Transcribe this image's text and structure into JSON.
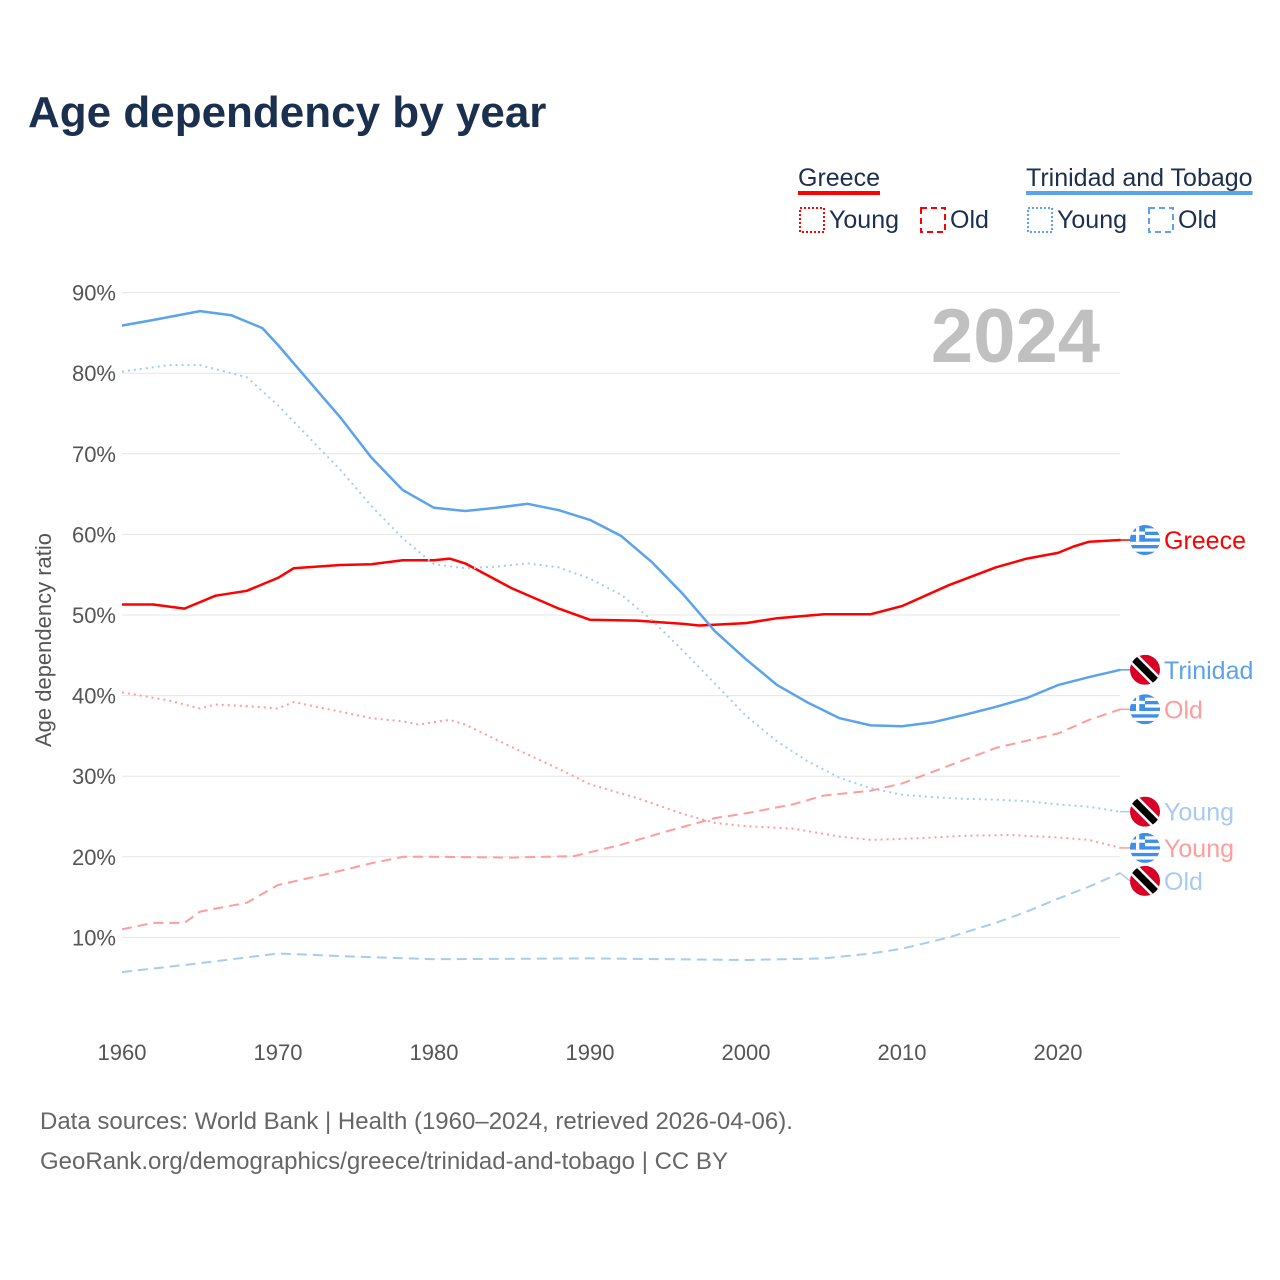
{
  "title": "Age dependency by year",
  "year_watermark": "2024",
  "legend": {
    "groups": [
      {
        "name": "Greece",
        "color": "#ff0000",
        "items": [
          "Young",
          "Old"
        ]
      },
      {
        "name": "Trinidad and Tobago",
        "color": "#5ba3ec",
        "items": [
          "Young",
          "Old"
        ]
      }
    ]
  },
  "footer": {
    "line1": "Data sources: World Bank | Health (1960–2024, retrieved 2026-04-06).",
    "line2": "GeoRank.org/demographics/greece/trinidad-and-tobago | CC BY"
  },
  "chart_data": {
    "type": "line",
    "title": "Age dependency by year",
    "xlabel": "",
    "ylabel": "Age dependency ratio",
    "xlim": [
      1960,
      2024
    ],
    "ylim": [
      0,
      90
    ],
    "xticks": [
      "1960",
      "1970",
      "1980",
      "1990",
      "2000",
      "2010",
      "2020"
    ],
    "yticks": [
      "10%",
      "20%",
      "30%",
      "40%",
      "50%",
      "60%",
      "70%",
      "80%",
      "90%"
    ],
    "grid": true,
    "series": [
      {
        "name": "Greece",
        "end_label": "Greece",
        "flag": "greece",
        "color": "#ff0000",
        "style": "solid",
        "x": [
          1960,
          1962,
          1964,
          1966,
          1968,
          1970,
          1971,
          1974,
          1976,
          1978,
          1980,
          1981,
          1982,
          1985,
          1988,
          1990,
          1993,
          1996,
          1997,
          2000,
          2002,
          2005,
          2008,
          2010,
          2013,
          2016,
          2018,
          2020,
          2021,
          2022,
          2024
        ],
        "y": [
          51.3,
          51.3,
          50.8,
          52.4,
          53.0,
          54.6,
          55.8,
          56.2,
          56.3,
          56.8,
          56.8,
          57.0,
          56.4,
          53.3,
          50.8,
          49.4,
          49.3,
          48.9,
          48.7,
          49.0,
          49.6,
          50.1,
          50.1,
          51.1,
          53.7,
          55.9,
          57.0,
          57.7,
          58.5,
          59.1,
          59.3
        ]
      },
      {
        "name": "Trinidad and Tobago",
        "end_label": "Trinidad",
        "flag": "trinidad",
        "color": "#5ba3ec",
        "style": "solid",
        "x": [
          1960,
          1962,
          1965,
          1967,
          1969,
          1970,
          1972,
          1974,
          1976,
          1978,
          1980,
          1982,
          1984,
          1986,
          1988,
          1990,
          1992,
          1994,
          1996,
          1998,
          2000,
          2002,
          2004,
          2006,
          2008,
          2010,
          2012,
          2014,
          2016,
          2018,
          2020,
          2022,
          2024
        ],
        "y": [
          85.9,
          86.6,
          87.7,
          87.2,
          85.6,
          83.5,
          79.0,
          74.5,
          69.5,
          65.5,
          63.3,
          62.9,
          63.3,
          63.8,
          63.0,
          61.8,
          59.8,
          56.5,
          52.5,
          48.0,
          44.5,
          41.3,
          39.1,
          37.2,
          36.3,
          36.2,
          36.7,
          37.6,
          38.6,
          39.7,
          41.3,
          42.3,
          43.2
        ]
      },
      {
        "name": "Greece Old",
        "end_label": "Old",
        "flag": "greece",
        "color": "#ff9c9c",
        "style": "dashed",
        "x": [
          1960,
          1962,
          1964,
          1965,
          1968,
          1970,
          1973,
          1976,
          1978,
          1980,
          1985,
          1989,
          1992,
          1995,
          1998,
          2000,
          2003,
          2005,
          2008,
          2010,
          2013,
          2016,
          2018,
          2020,
          2022,
          2024
        ],
        "y": [
          11.0,
          11.8,
          11.8,
          13.2,
          14.3,
          16.5,
          17.8,
          19.2,
          20.0,
          20.0,
          19.9,
          20.1,
          21.5,
          23.2,
          24.8,
          25.4,
          26.5,
          27.6,
          28.2,
          29.1,
          31.3,
          33.5,
          34.4,
          35.3,
          37.0,
          38.3
        ]
      },
      {
        "name": "Trinidad and Tobago Young",
        "end_label": "Young",
        "flag": "trinidad",
        "color": "#a8cbf0",
        "style": "dotted",
        "x": [
          1960,
          1963,
          1965,
          1968,
          1970,
          1972,
          1974,
          1976,
          1978,
          1980,
          1982,
          1984,
          1986,
          1988,
          1990,
          1992,
          1994,
          1996,
          1998,
          2000,
          2002,
          2004,
          2006,
          2008,
          2010,
          2012,
          2014,
          2016,
          2018,
          2020,
          2022,
          2024
        ],
        "y": [
          80.2,
          81.0,
          81.0,
          79.5,
          76.0,
          72.0,
          68.0,
          63.5,
          59.5,
          56.3,
          55.8,
          56.0,
          56.4,
          55.9,
          54.5,
          52.5,
          49.3,
          45.5,
          41.5,
          37.5,
          34.3,
          31.8,
          29.8,
          28.5,
          27.7,
          27.4,
          27.2,
          27.1,
          26.9,
          26.5,
          26.2,
          25.6
        ]
      },
      {
        "name": "Greece Young",
        "end_label": "Young",
        "flag": "greece",
        "color": "#ff9c9c",
        "style": "dotted",
        "x": [
          1960,
          1963,
          1965,
          1966,
          1968,
          1970,
          1971,
          1974,
          1976,
          1978,
          1979,
          1981,
          1982,
          1985,
          1988,
          1990,
          1993,
          1996,
          1998,
          2000,
          2003,
          2006,
          2008,
          2011,
          2014,
          2017,
          2020,
          2022,
          2024
        ],
        "y": [
          40.4,
          39.4,
          38.4,
          38.9,
          38.7,
          38.4,
          39.2,
          38.0,
          37.2,
          36.8,
          36.4,
          37.0,
          36.4,
          33.6,
          30.9,
          29.0,
          27.3,
          25.3,
          24.2,
          23.8,
          23.5,
          22.5,
          22.1,
          22.3,
          22.6,
          22.7,
          22.4,
          22.1,
          21.1
        ]
      },
      {
        "name": "Trinidad and Tobago Old",
        "end_label": "Old",
        "flag": "trinidad",
        "color": "#a8cbf0",
        "style": "dashed",
        "x": [
          1960,
          1965,
          1970,
          1975,
          1980,
          1990,
          2000,
          2005,
          2008,
          2010,
          2013,
          2016,
          2018,
          2020,
          2022,
          2024
        ],
        "y": [
          5.7,
          6.8,
          8.0,
          7.6,
          7.3,
          7.4,
          7.2,
          7.4,
          8.0,
          8.6,
          10.0,
          11.8,
          13.2,
          14.8,
          16.3,
          18.0
        ]
      }
    ]
  }
}
